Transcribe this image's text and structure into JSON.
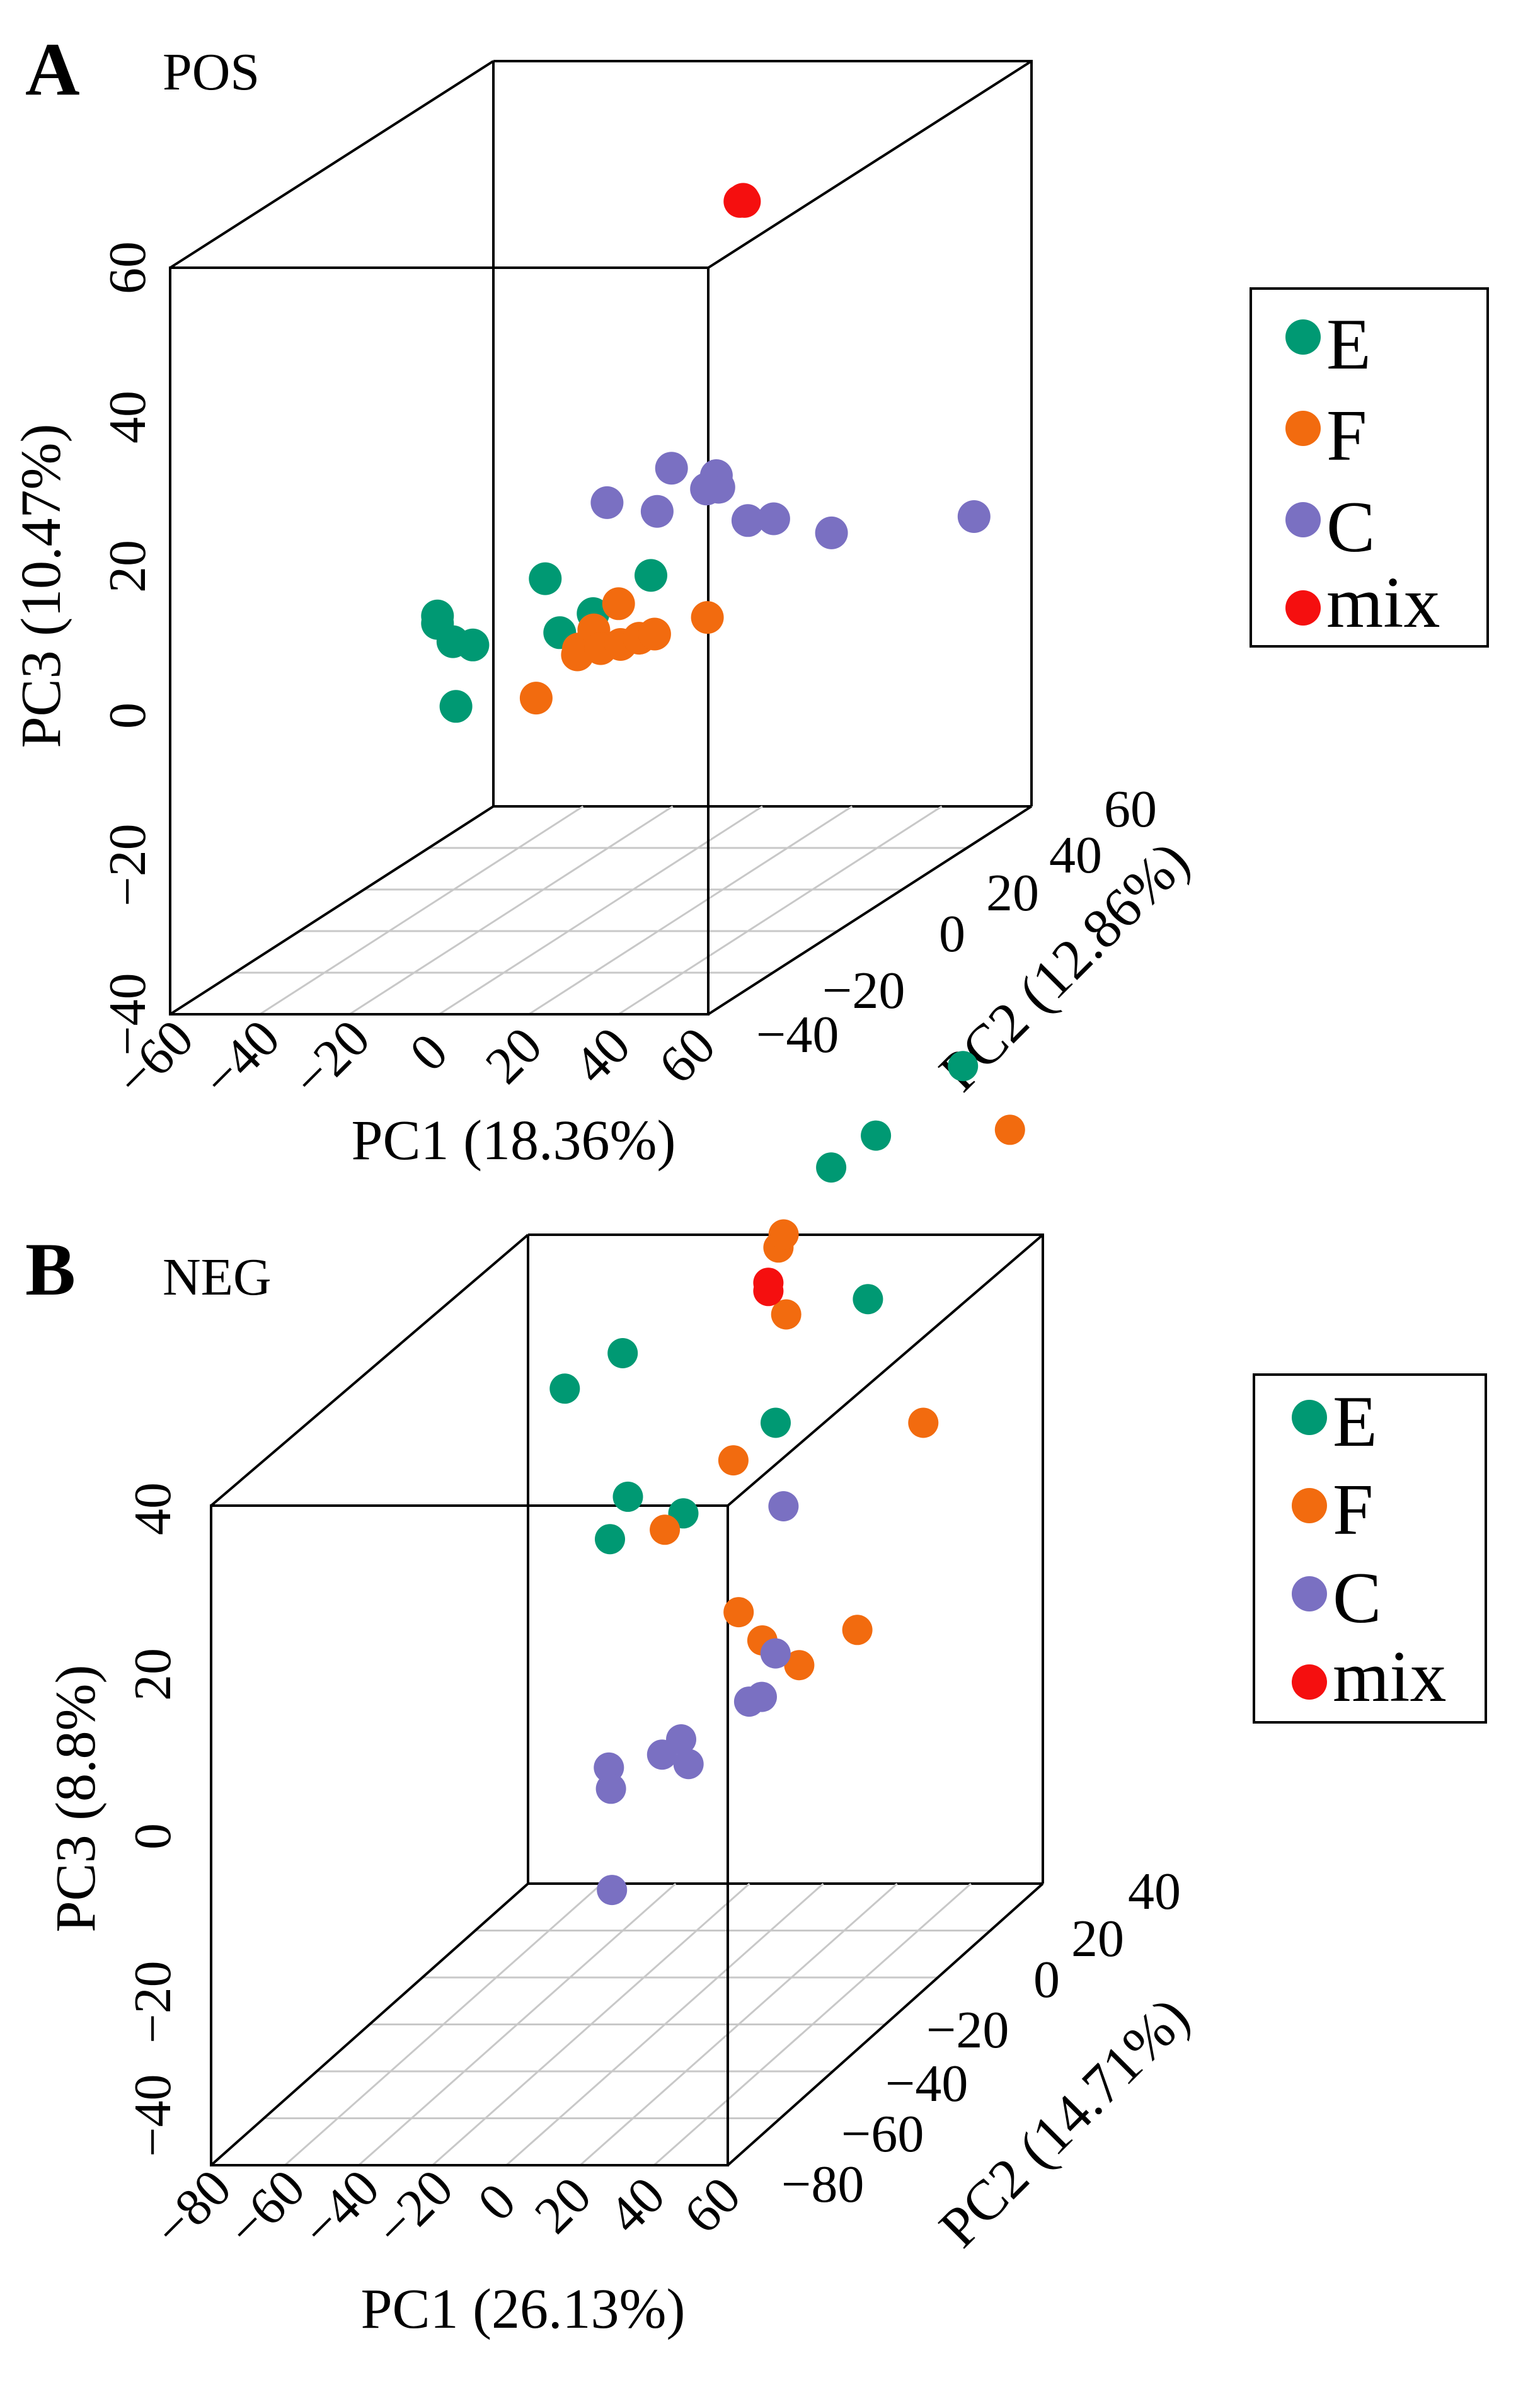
{
  "chart_data": [
    {
      "type": "scatter",
      "panel_letter": "A",
      "title": "POS",
      "xlabel": "PC1 (18.36%)",
      "ylabel": "PC2 (12.86%)",
      "zlabel": "PC3 (10.47%)",
      "xticks": [
        "−60",
        "−40",
        "−20",
        "0",
        "20",
        "40",
        "60"
      ],
      "yticks": [
        "−40",
        "−20",
        "0",
        "20",
        "40",
        "60"
      ],
      "zticks": [
        "−40",
        "−20",
        "0",
        "20",
        "40",
        "60"
      ],
      "xlim": [
        -60,
        60
      ],
      "ylim": [
        -40,
        60
      ],
      "zlim": [
        -40,
        60
      ],
      "legend": [
        "E",
        "F",
        "C",
        "mix"
      ],
      "legend_position": "right",
      "colors": {
        "E": "#009973",
        "F": "#F26B0F",
        "C": "#7A70C2",
        "mix": "#F50F0F"
      },
      "series": [
        {
          "name": "E",
          "points": [
            {
              "x": -22,
              "y": -10,
              "z": 5
            },
            {
              "x": -22,
              "y": -10,
              "z": 4
            },
            {
              "x": -20,
              "y": -8,
              "z": 1
            },
            {
              "x": -17,
              "y": -6,
              "z": 0
            },
            {
              "x": -15,
              "y": -14,
              "z": -6
            },
            {
              "x": 15,
              "y": -28,
              "z": 15
            },
            {
              "x": 24,
              "y": -36,
              "z": 10
            },
            {
              "x": 30,
              "y": -34,
              "z": 12
            },
            {
              "x": 40,
              "y": -30,
              "z": 16
            }
          ]
        },
        {
          "name": "F",
          "points": [
            {
              "x": -5,
              "y": 10,
              "z": -5
            },
            {
              "x": -3,
              "y": 12,
              "z": -3
            },
            {
              "x": 2,
              "y": 0,
              "z": -3
            },
            {
              "x": 5,
              "y": 3,
              "z": -3
            },
            {
              "x": 8,
              "y": 5,
              "z": -3
            },
            {
              "x": 10,
              "y": 8,
              "z": -3
            },
            {
              "x": 12,
              "y": 10,
              "z": -3
            },
            {
              "x": 18,
              "y": 18,
              "z": -3
            },
            {
              "x": 0,
              "y": -10,
              "z": -6
            },
            {
              "x": 40,
              "y": -40,
              "z": 15
            }
          ]
        },
        {
          "name": "C",
          "points": [
            {
              "x": 5,
              "y": 5,
              "z": 16
            },
            {
              "x": 10,
              "y": 18,
              "z": 17
            },
            {
              "x": 14,
              "y": 8,
              "z": 14
            },
            {
              "x": 20,
              "y": 18,
              "z": 16
            },
            {
              "x": 22,
              "y": 16,
              "z": 15
            },
            {
              "x": 25,
              "y": 8,
              "z": 17
            },
            {
              "x": 40,
              "y": 0,
              "z": 15
            },
            {
              "x": 40,
              "y": 8,
              "z": 13
            },
            {
              "x": 50,
              "y": 12,
              "z": 10
            },
            {
              "x": 58,
              "y": 45,
              "z": 3
            }
          ]
        },
        {
          "name": "mix",
          "points": [
            {
              "x": 13,
              "y": 35,
              "z": 48
            },
            {
              "x": 13,
              "y": 36,
              "z": 48
            },
            {
              "x": 14,
              "y": 35,
              "z": 48
            }
          ]
        }
      ]
    },
    {
      "type": "scatter",
      "panel_letter": "B",
      "title": "NEG",
      "xlabel": "PC1 (26.13%)",
      "ylabel": "PC2 (14.71%)",
      "zlabel": "PC3 (8.8%)",
      "xticks": [
        "−80",
        "−60",
        "−40",
        "−20",
        "0",
        "20",
        "40",
        "60"
      ],
      "yticks": [
        "−80",
        "−60",
        "−40",
        "−20",
        "0",
        "20",
        "40"
      ],
      "zticks": [
        "−40",
        "−20",
        "0",
        "20",
        "40"
      ],
      "xlim": [
        -80,
        60
      ],
      "ylim": [
        -80,
        40
      ],
      "zlim": [
        -40,
        40
      ],
      "legend": [
        "E",
        "F",
        "C",
        "mix"
      ],
      "legend_position": "right",
      "colors": {
        "E": "#009973",
        "F": "#F26B0F",
        "C": "#7A70C2",
        "mix": "#F50F0F"
      },
      "series": [
        {
          "name": "E",
          "points": [
            {
              "x": -45,
              "y": 5,
              "z": 30
            },
            {
              "x": -20,
              "y": -8,
              "z": 38
            },
            {
              "x": -10,
              "y": -20,
              "z": 24
            },
            {
              "x": -12,
              "y": -24,
              "z": 20
            },
            {
              "x": -5,
              "y": -6,
              "z": 18
            },
            {
              "x": 10,
              "y": 8,
              "z": 25
            },
            {
              "x": 5,
              "y": 36,
              "z": 48
            },
            {
              "x": 25,
              "y": 25,
              "z": 55
            },
            {
              "x": 45,
              "y": 30,
              "z": 62
            },
            {
              "x": 35,
              "y": 8,
              "z": 40
            }
          ]
        },
        {
          "name": "F",
          "points": [
            {
              "x": -5,
              "y": 30,
              "z": 40
            },
            {
              "x": 5,
              "y": 18,
              "z": 45
            },
            {
              "x": 15,
              "y": 5,
              "z": 39
            },
            {
              "x": 10,
              "y": -8,
              "z": 25
            },
            {
              "x": 0,
              "y": -20,
              "z": 20
            },
            {
              "x": 20,
              "y": -20,
              "z": 10
            },
            {
              "x": 25,
              "y": -18,
              "z": 6
            },
            {
              "x": 52,
              "y": 38,
              "z": 52
            },
            {
              "x": 50,
              "y": 8,
              "z": 25
            },
            {
              "x": 45,
              "y": -10,
              "z": 5
            },
            {
              "x": 40,
              "y": -25,
              "z": 5
            }
          ]
        },
        {
          "name": "C",
          "points": [
            {
              "x": -8,
              "y": -30,
              "z": -6
            },
            {
              "x": -6,
              "y": -32,
              "z": -8
            },
            {
              "x": 5,
              "y": -28,
              "z": -5
            },
            {
              "x": 8,
              "y": -25,
              "z": -4
            },
            {
              "x": 10,
              "y": -25,
              "z": -7
            },
            {
              "x": 0,
              "y": -40,
              "z": -18
            },
            {
              "x": 25,
              "y": -10,
              "z": 20
            },
            {
              "x": 30,
              "y": -20,
              "z": 5
            },
            {
              "x": 30,
              "y": -30,
              "z": 2
            },
            {
              "x": 32,
              "y": -28,
              "z": 2
            }
          ]
        },
        {
          "name": "mix",
          "points": [
            {
              "x": -2,
              "y": 22,
              "z": 38
            },
            {
              "x": -2,
              "y": 22,
              "z": 37
            }
          ]
        }
      ]
    }
  ]
}
